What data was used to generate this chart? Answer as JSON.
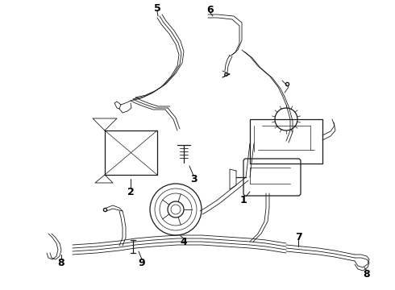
{
  "background_color": "#ffffff",
  "line_color": "#1a1a1a",
  "label_color": "#000000",
  "fig_width": 4.9,
  "fig_height": 3.6,
  "dpi": 100,
  "label_fontsize": 8,
  "lw": 0.9,
  "tlw": 0.6
}
